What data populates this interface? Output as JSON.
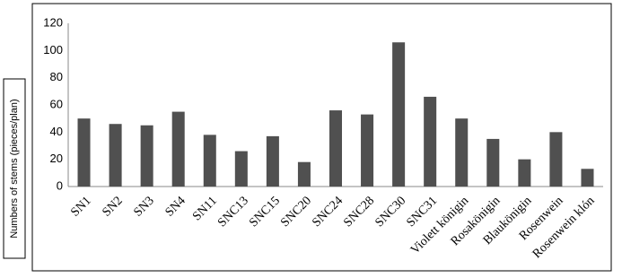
{
  "chart_data": {
    "type": "bar",
    "y_label": "Numbers of stems (pieces/plan)",
    "categories": [
      "SN1",
      "SN2",
      "SN3",
      "SN4",
      "SN11",
      "SNC13",
      "SNC15",
      "SNC20",
      "SNC24",
      "SNC28",
      "SNC30",
      "SNC31",
      "Violett königin",
      "Rosakönigin",
      "Blaukönigin",
      "Rosenwein",
      "Rosenwein klón"
    ],
    "values": [
      50,
      46,
      45,
      55,
      38,
      26,
      37,
      18,
      56,
      53,
      106,
      66,
      50,
      35,
      20,
      40,
      13
    ],
    "color": "#505050",
    "ylim": [
      0,
      120
    ],
    "yticks": [
      0,
      20,
      40,
      60,
      80,
      100,
      120
    ],
    "grid": false
  }
}
